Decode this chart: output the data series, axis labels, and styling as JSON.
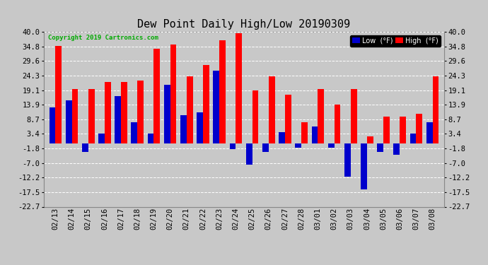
{
  "title": "Dew Point Daily High/Low 20190309",
  "copyright": "Copyright 2019 Cartronics.com",
  "legend_low": "Low  (°F)",
  "legend_high": "High  (°F)",
  "dates": [
    "02/13",
    "02/14",
    "02/15",
    "02/16",
    "02/17",
    "02/18",
    "02/19",
    "02/20",
    "02/21",
    "02/22",
    "02/23",
    "02/24",
    "02/25",
    "02/26",
    "02/27",
    "02/28",
    "03/01",
    "03/02",
    "03/03",
    "03/04",
    "03/05",
    "03/06",
    "03/07",
    "03/08"
  ],
  "high": [
    35.0,
    19.5,
    19.5,
    22.0,
    22.0,
    22.5,
    34.0,
    35.5,
    24.0,
    28.0,
    37.0,
    39.5,
    19.0,
    24.0,
    17.5,
    7.5,
    19.5,
    14.0,
    19.5,
    2.5,
    9.5,
    9.5,
    10.5,
    24.0
  ],
  "low": [
    13.0,
    15.5,
    -3.0,
    3.5,
    17.0,
    7.5,
    3.5,
    21.0,
    10.0,
    11.0,
    26.0,
    -2.0,
    -7.5,
    -3.0,
    4.0,
    -1.5,
    6.0,
    -1.5,
    -12.0,
    -16.5,
    -3.0,
    -4.0,
    3.5,
    7.5
  ],
  "ylim": [
    -22.7,
    40.0
  ],
  "yticks": [
    40.0,
    34.8,
    29.6,
    24.3,
    19.1,
    13.9,
    8.7,
    3.4,
    -1.8,
    -7.0,
    -12.2,
    -17.5,
    -22.7
  ],
  "high_color": "#ff0000",
  "low_color": "#0000cc",
  "bg_color": "#c8c8c8",
  "grid_color": "#ffffff",
  "title_fontsize": 11,
  "tick_fontsize": 7.5,
  "copyright_color": "#00aa00"
}
